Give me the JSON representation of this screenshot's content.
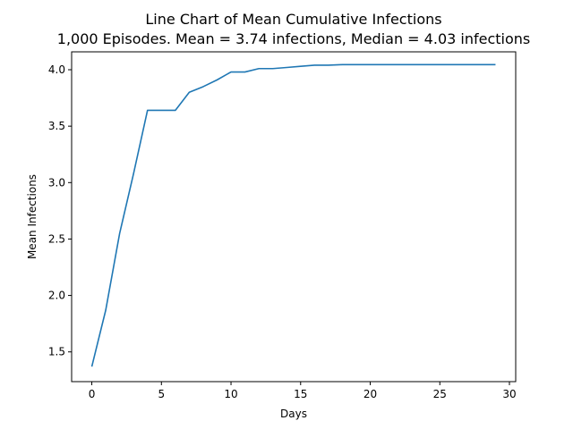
{
  "chart_data": {
    "type": "line",
    "title": "Line Chart of Mean Cumulative Infections",
    "subtitle": "1,000 Episodes. Mean = 3.74 infections, Median = 4.03 infections",
    "xlabel": "Days",
    "ylabel": "Mean Infections",
    "xlim": [
      -1.45,
      30.45
    ],
    "ylim": [
      1.2365,
      4.1585
    ],
    "xticks": [
      0,
      5,
      10,
      15,
      20,
      25,
      30
    ],
    "yticks": [
      1.5,
      2.0,
      2.5,
      3.0,
      3.5,
      4.0
    ],
    "xtick_labels": [
      "0",
      "5",
      "10",
      "15",
      "20",
      "25",
      "30"
    ],
    "ytick_labels": [
      "1.5",
      "2.0",
      "2.5",
      "3.0",
      "3.5",
      "4.0"
    ],
    "grid": false,
    "legend": "none",
    "line_color": "#1f77b4",
    "series": [
      {
        "x": [
          0,
          1,
          2,
          3,
          4,
          5,
          6,
          7,
          8,
          9,
          10,
          11,
          12,
          13,
          14,
          15,
          16,
          17,
          18,
          19,
          20,
          21,
          22,
          23,
          24,
          25,
          26,
          27,
          28,
          29
        ],
        "y": [
          1.37,
          1.87,
          2.55,
          3.08,
          3.64,
          3.64,
          3.64,
          3.8,
          3.85,
          3.91,
          3.98,
          3.98,
          4.01,
          4.01,
          4.02,
          4.03,
          4.04,
          4.04,
          4.045,
          4.045,
          4.045,
          4.045,
          4.045,
          4.045,
          4.045,
          4.045,
          4.045,
          4.045,
          4.045,
          4.045
        ]
      }
    ]
  }
}
